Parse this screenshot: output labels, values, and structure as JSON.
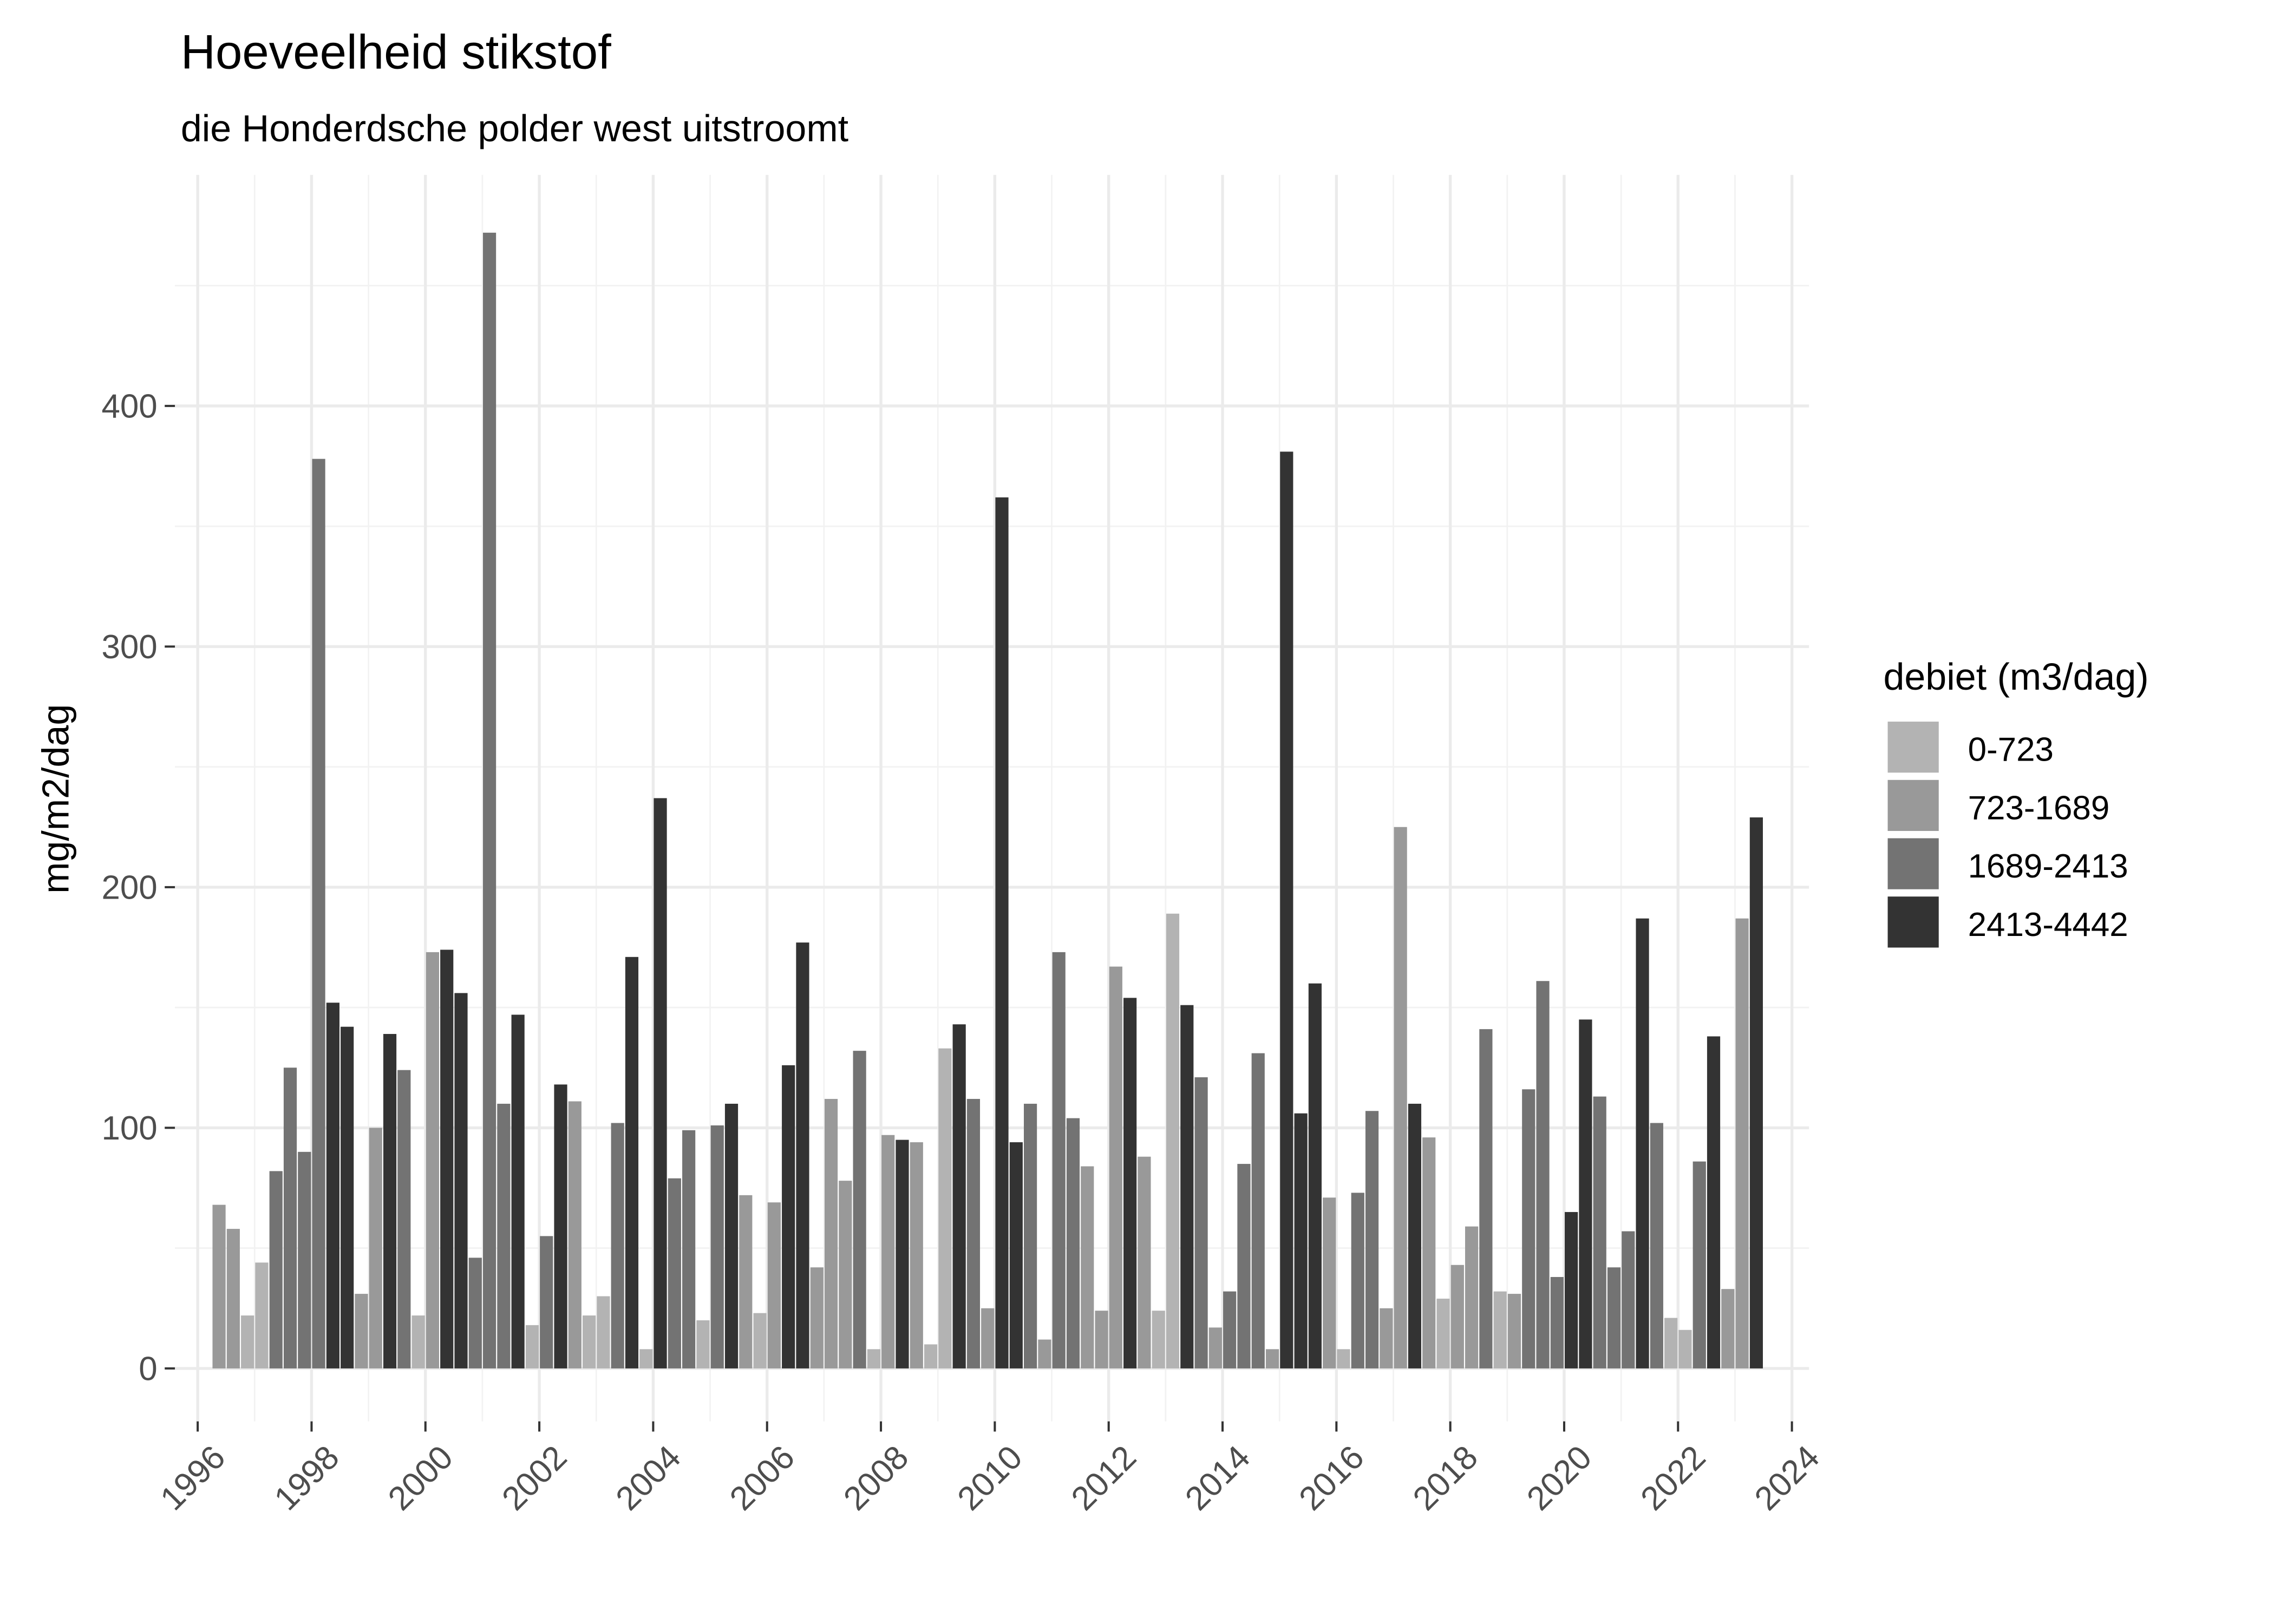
{
  "chart_data": {
    "type": "bar",
    "title": "Hoeveelheid stikstof",
    "subtitle": "die Honderdsche polder west uitstroomt",
    "xlabel": "",
    "ylabel": "mg/m2/dag",
    "xlim": [
      1995.6,
      2024.3
    ],
    "ylim": [
      -22,
      496
    ],
    "x_ticks": [
      "1996",
      "1998",
      "2000",
      "2002",
      "2004",
      "2006",
      "2008",
      "2010",
      "2012",
      "2014",
      "2016",
      "2018",
      "2020",
      "2022",
      "2024"
    ],
    "y_ticks": [
      "0",
      "100",
      "200",
      "300",
      "400"
    ],
    "grid": true,
    "legend": {
      "title": "debiet (m3/dag)",
      "placement": "right",
      "entries": [
        {
          "label": "0-723",
          "color": "#b3b3b3"
        },
        {
          "label": "723-1689",
          "color": "#999999"
        },
        {
          "label": "1689-2413",
          "color": "#737373"
        },
        {
          "label": "2413-4442",
          "color": "#333333"
        }
      ]
    },
    "bar_fields": [
      "quarter",
      "value",
      "debiet_class_index"
    ],
    "bars": [
      [
        "1996-Q2",
        68,
        1
      ],
      [
        "1996-Q3",
        58,
        1
      ],
      [
        "1996-Q4",
        22,
        0
      ],
      [
        "1997-Q1",
        44,
        0
      ],
      [
        "1997-Q2",
        82,
        2
      ],
      [
        "1997-Q3",
        125,
        2
      ],
      [
        "1997-Q4",
        90,
        2
      ],
      [
        "1998-Q1",
        378,
        2
      ],
      [
        "1998-Q2",
        152,
        3
      ],
      [
        "1998-Q3",
        142,
        3
      ],
      [
        "1998-Q4",
        31,
        1
      ],
      [
        "1999-Q1",
        100,
        1
      ],
      [
        "1999-Q2",
        139,
        3
      ],
      [
        "1999-Q3",
        124,
        2
      ],
      [
        "1999-Q4",
        22,
        0
      ],
      [
        "2000-Q1",
        173,
        1
      ],
      [
        "2000-Q2",
        174,
        3
      ],
      [
        "2000-Q3",
        156,
        3
      ],
      [
        "2000-Q4",
        46,
        2
      ],
      [
        "2001-Q1",
        472,
        2
      ],
      [
        "2001-Q2",
        110,
        2
      ],
      [
        "2001-Q3",
        147,
        3
      ],
      [
        "2001-Q4",
        18,
        0
      ],
      [
        "2002-Q1",
        55,
        2
      ],
      [
        "2002-Q2",
        118,
        3
      ],
      [
        "2002-Q3",
        111,
        1
      ],
      [
        "2002-Q4",
        22,
        0
      ],
      [
        "2003-Q1",
        30,
        0
      ],
      [
        "2003-Q2",
        102,
        2
      ],
      [
        "2003-Q3",
        171,
        3
      ],
      [
        "2003-Q4",
        8,
        0
      ],
      [
        "2004-Q1",
        237,
        3
      ],
      [
        "2004-Q2",
        79,
        2
      ],
      [
        "2004-Q3",
        99,
        2
      ],
      [
        "2004-Q4",
        20,
        0
      ],
      [
        "2005-Q1",
        101,
        2
      ],
      [
        "2005-Q2",
        110,
        3
      ],
      [
        "2005-Q3",
        72,
        1
      ],
      [
        "2005-Q4",
        23,
        0
      ],
      [
        "2006-Q1",
        69,
        1
      ],
      [
        "2006-Q2",
        126,
        3
      ],
      [
        "2006-Q3",
        177,
        3
      ],
      [
        "2006-Q4",
        42,
        1
      ],
      [
        "2007-Q1",
        112,
        1
      ],
      [
        "2007-Q2",
        78,
        1
      ],
      [
        "2007-Q3",
        132,
        2
      ],
      [
        "2007-Q4",
        8,
        0
      ],
      [
        "2008-Q1",
        97,
        1
      ],
      [
        "2008-Q2",
        95,
        3
      ],
      [
        "2008-Q3",
        94,
        1
      ],
      [
        "2008-Q4",
        10,
        0
      ],
      [
        "2009-Q1",
        133,
        0
      ],
      [
        "2009-Q2",
        143,
        3
      ],
      [
        "2009-Q3",
        112,
        2
      ],
      [
        "2009-Q4",
        25,
        1
      ],
      [
        "2010-Q1",
        362,
        3
      ],
      [
        "2010-Q2",
        94,
        3
      ],
      [
        "2010-Q3",
        110,
        2
      ],
      [
        "2010-Q4",
        12,
        1
      ],
      [
        "2011-Q1",
        173,
        2
      ],
      [
        "2011-Q2",
        104,
        2
      ],
      [
        "2011-Q3",
        84,
        1
      ],
      [
        "2011-Q4",
        24,
        1
      ],
      [
        "2012-Q1",
        167,
        1
      ],
      [
        "2012-Q2",
        154,
        3
      ],
      [
        "2012-Q3",
        88,
        1
      ],
      [
        "2012-Q4",
        24,
        0
      ],
      [
        "2013-Q1",
        189,
        0
      ],
      [
        "2013-Q2",
        151,
        3
      ],
      [
        "2013-Q3",
        121,
        2
      ],
      [
        "2013-Q4",
        17,
        1
      ],
      [
        "2014-Q1",
        32,
        2
      ],
      [
        "2014-Q2",
        85,
        2
      ],
      [
        "2014-Q3",
        131,
        2
      ],
      [
        "2014-Q4",
        8,
        1
      ],
      [
        "2015-Q1",
        381,
        3
      ],
      [
        "2015-Q2",
        106,
        3
      ],
      [
        "2015-Q3",
        160,
        3
      ],
      [
        "2015-Q4",
        71,
        1
      ],
      [
        "2016-Q1",
        8,
        0
      ],
      [
        "2016-Q2",
        73,
        2
      ],
      [
        "2016-Q3",
        107,
        2
      ],
      [
        "2016-Q4",
        25,
        1
      ],
      [
        "2017-Q1",
        225,
        1
      ],
      [
        "2017-Q2",
        110,
        3
      ],
      [
        "2017-Q3",
        96,
        1
      ],
      [
        "2017-Q4",
        29,
        0
      ],
      [
        "2018-Q1",
        43,
        1
      ],
      [
        "2018-Q2",
        59,
        1
      ],
      [
        "2018-Q3",
        141,
        2
      ],
      [
        "2018-Q4",
        32,
        0
      ],
      [
        "2019-Q1",
        31,
        1
      ],
      [
        "2019-Q2",
        116,
        2
      ],
      [
        "2019-Q3",
        161,
        2
      ],
      [
        "2019-Q4",
        38,
        2
      ],
      [
        "2020-Q1",
        65,
        3
      ],
      [
        "2020-Q2",
        145,
        3
      ],
      [
        "2020-Q3",
        113,
        2
      ],
      [
        "2020-Q4",
        42,
        2
      ],
      [
        "2021-Q1",
        57,
        2
      ],
      [
        "2021-Q2",
        187,
        3
      ],
      [
        "2021-Q3",
        102,
        2
      ],
      [
        "2021-Q4",
        21,
        0
      ],
      [
        "2022-Q1",
        16,
        0
      ],
      [
        "2022-Q2",
        86,
        2
      ],
      [
        "2022-Q3",
        138,
        3
      ],
      [
        "2022-Q4",
        33,
        1
      ],
      [
        "2023-Q1",
        187,
        1
      ],
      [
        "2023-Q2",
        229,
        3
      ]
    ]
  }
}
